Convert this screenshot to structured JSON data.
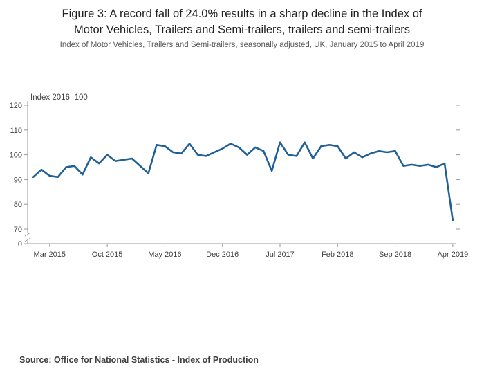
{
  "header": {
    "title_lines": [
      "Figure 3: A record fall of 24.0% results in a sharp decline in the Index of",
      "Motor Vehicles, Trailers and Semi-trailers, trailers and semi-trailers"
    ],
    "subtitle": "Index of Motor Vehicles, Trailers and Semi-trailers, seasonally adjusted, UK, January 2015 to April 2019"
  },
  "footer": {
    "source_label": "Source:",
    "source_text": "Office for National Statistics - Index of Production"
  },
  "chart_data": {
    "type": "line",
    "title": "Figure 3: A record fall of 24.0% results in a sharp decline in the Index of Motor Vehicles, Trailers and Semi-trailers, trailers and semi-trailers",
    "subtitle": "Index of Motor Vehicles, Trailers and Semi-trailers, seasonally adjusted, UK, January 2015 to April 2019",
    "axis_unit_label": "Index 2016=100",
    "line_color": "#206095",
    "axis_color": "#999999",
    "tick_label_color": "#414042",
    "ylim": [
      70,
      120
    ],
    "axis_break_to_zero": true,
    "grid": false,
    "legend": "none",
    "y_ticks": [
      120,
      110,
      100,
      90,
      80,
      70
    ],
    "y_zero_label": "0",
    "x_tick_labels": [
      "Mar 2015",
      "Oct 2015",
      "May 2016",
      "Dec 2016",
      "Jul 2017",
      "Feb 2018",
      "Sep 2018",
      "Apr 2019"
    ],
    "x": [
      "Jan 2015",
      "Feb 2015",
      "Mar 2015",
      "Apr 2015",
      "May 2015",
      "Jun 2015",
      "Jul 2015",
      "Aug 2015",
      "Sep 2015",
      "Oct 2015",
      "Nov 2015",
      "Dec 2015",
      "Jan 2016",
      "Feb 2016",
      "Mar 2016",
      "Apr 2016",
      "May 2016",
      "Jun 2016",
      "Jul 2016",
      "Aug 2016",
      "Sep 2016",
      "Oct 2016",
      "Nov 2016",
      "Dec 2016",
      "Jan 2017",
      "Feb 2017",
      "Mar 2017",
      "Apr 2017",
      "May 2017",
      "Jun 2017",
      "Jul 2017",
      "Aug 2017",
      "Sep 2017",
      "Oct 2017",
      "Nov 2017",
      "Dec 2017",
      "Jan 2018",
      "Feb 2018",
      "Mar 2018",
      "Apr 2018",
      "May 2018",
      "Jun 2018",
      "Jul 2018",
      "Aug 2018",
      "Sep 2018",
      "Oct 2018",
      "Nov 2018",
      "Dec 2018",
      "Jan 2019",
      "Feb 2019",
      "Mar 2019",
      "Apr 2019"
    ],
    "values": [
      91,
      94,
      91.5,
      91,
      95,
      95.5,
      92,
      99,
      96.5,
      100,
      97.5,
      98,
      98.5,
      95.5,
      92.5,
      104,
      103.5,
      101,
      100.5,
      104.5,
      100,
      99.5,
      101,
      102.5,
      104.5,
      103,
      100,
      103,
      101.5,
      93.5,
      105,
      100,
      99.5,
      105,
      98.5,
      103.5,
      104,
      103.5,
      98.5,
      101,
      99,
      100.5,
      101.5,
      101,
      101.5,
      95.5,
      96,
      95.5,
      96,
      95,
      96.5,
      73.4
    ],
    "source": "Source: Office for National Statistics - Index of Production"
  }
}
